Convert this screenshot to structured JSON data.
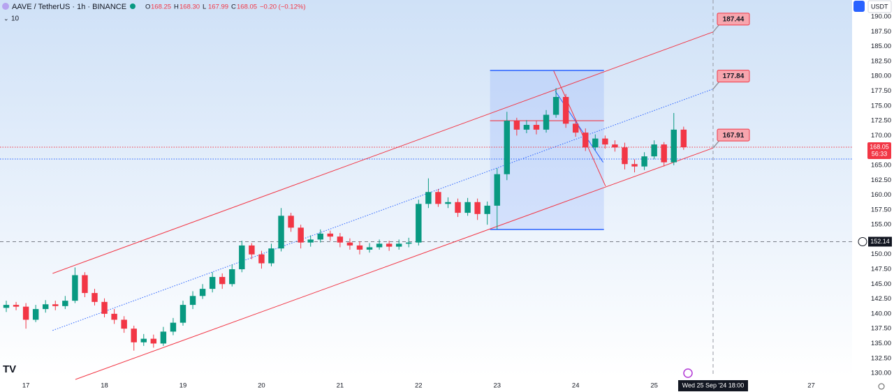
{
  "chart_data": {
    "type": "candlestick",
    "title": "AAVE / TetherUS · 1h · BINANCE",
    "legend_labels": [
      "O",
      "H",
      "L",
      "C"
    ],
    "legend_values": [
      "168.25",
      "168.30",
      "167.99",
      "168.05"
    ],
    "change_label": "−0.20 (−0.12%)",
    "indicator_label": "10",
    "currency_button": "USDT",
    "countdown": "56:33",
    "crosshair_x": 25.75,
    "crosshair_label": "Wed 25 Sep '24  18:00",
    "up_color": "#089981",
    "down_color": "#f23645",
    "xlim": [
      16.67,
      27.52
    ],
    "ylim": [
      129.42,
      192.82
    ],
    "xticks": [
      17,
      18,
      19,
      20,
      21,
      22,
      23,
      24,
      25,
      27
    ],
    "yticks": [
      {
        "value": 130,
        "label": "130.00"
      },
      {
        "value": 132.5,
        "label": "132.50"
      },
      {
        "value": 135,
        "label": "135.00"
      },
      {
        "value": 137.5,
        "label": "137.50"
      },
      {
        "value": 140,
        "label": "140.00"
      },
      {
        "value": 142.5,
        "label": "142.50"
      },
      {
        "value": 145,
        "label": "145.00"
      },
      {
        "value": 147.5,
        "label": "147.50"
      },
      {
        "value": 150,
        "label": "150.00"
      },
      {
        "value": 152.5,
        "label": "152.50"
      },
      {
        "value": 155,
        "label": "155.00"
      },
      {
        "value": 157.5,
        "label": "157.50"
      },
      {
        "value": 160,
        "label": "160.00"
      },
      {
        "value": 162.5,
        "label": "162.50"
      },
      {
        "value": 165,
        "label": "165.00"
      },
      {
        "value": 167.5,
        "label": "167.50"
      },
      {
        "value": 170,
        "label": "170.00"
      },
      {
        "value": 172.5,
        "label": "172.50"
      },
      {
        "value": 175,
        "label": "175.00"
      },
      {
        "value": 177.5,
        "label": "177.50"
      },
      {
        "value": 180,
        "label": "180.00"
      },
      {
        "value": 182.5,
        "label": "182.50"
      },
      {
        "value": 185,
        "label": "185.00"
      },
      {
        "value": 187.5,
        "label": "187.50"
      },
      {
        "value": 190,
        "label": "190.00"
      }
    ],
    "grid": false,
    "x": [
      16.75,
      16.875,
      17,
      17.125,
      17.25,
      17.375,
      17.5,
      17.625,
      17.75,
      17.875,
      18,
      18.125,
      18.25,
      18.375,
      18.5,
      18.625,
      18.75,
      18.875,
      19,
      19.125,
      19.25,
      19.375,
      19.5,
      19.625,
      19.75,
      19.875,
      20,
      20.125,
      20.25,
      20.375,
      20.5,
      20.625,
      20.75,
      20.875,
      21,
      21.125,
      21.25,
      21.375,
      21.5,
      21.625,
      21.75,
      21.875,
      22,
      22.125,
      22.25,
      22.375,
      22.5,
      22.625,
      22.75,
      22.875,
      23,
      23.125,
      23.25,
      23.375,
      23.5,
      23.625,
      23.75,
      23.875,
      24,
      24.125,
      24.25,
      24.375,
      24.5,
      24.625,
      24.75,
      24.875,
      25,
      25.125,
      25.25,
      25.375
    ],
    "open": [
      141.0,
      141.5,
      141.2,
      139.0,
      140.8,
      141.6,
      141.3,
      142.2,
      146.5,
      143.5,
      142.0,
      140.0,
      139.0,
      137.5,
      135.2,
      135.8,
      135.0,
      137.0,
      138.5,
      141.5,
      143.0,
      144.2,
      146.2,
      145.0,
      147.5,
      151.5,
      150.0,
      148.5,
      151.0,
      156.5,
      154.5,
      152.0,
      152.5,
      153.5,
      153.0,
      152.0,
      151.5,
      150.8,
      151.2,
      151.8,
      151.3,
      151.8,
      152.0,
      158.5,
      160.5,
      158.5,
      158.8,
      157.0,
      158.8,
      156.8,
      158.2,
      163.5,
      172.5,
      171.0,
      171.8,
      171.0,
      173.5,
      176.5,
      172.0,
      170.5,
      168.0,
      169.5,
      168.5,
      168.0,
      165.2,
      164.8,
      166.5,
      168.5,
      165.5,
      171.0
    ],
    "high": [
      142.2,
      142.0,
      141.8,
      141.5,
      142.3,
      142.2,
      143.0,
      147.8,
      147.0,
      144.2,
      142.6,
      140.8,
      139.6,
      138.0,
      136.6,
      136.5,
      137.8,
      139.3,
      142.2,
      143.8,
      145.0,
      147.0,
      146.8,
      148.3,
      152.3,
      151.9,
      150.6,
      151.8,
      157.8,
      157.0,
      155.0,
      153.2,
      154.2,
      154.0,
      153.6,
      152.7,
      152.2,
      151.9,
      152.5,
      152.3,
      152.5,
      152.8,
      159.2,
      162.8,
      161.0,
      159.6,
      159.4,
      159.5,
      159.4,
      158.9,
      164.5,
      174.0,
      173.0,
      172.6,
      172.5,
      174.3,
      178.0,
      177.0,
      172.8,
      171.2,
      170.2,
      170.0,
      169.2,
      168.8,
      166.0,
      167.2,
      169.2,
      168.9,
      173.8,
      171.5
    ],
    "low": [
      140.3,
      140.6,
      137.5,
      138.6,
      140.2,
      140.6,
      140.8,
      141.8,
      142.8,
      141.4,
      139.4,
      138.3,
      136.8,
      133.8,
      134.6,
      134.3,
      134.6,
      136.4,
      138.0,
      140.8,
      142.5,
      143.6,
      144.2,
      144.6,
      147.0,
      149.2,
      147.6,
      148.0,
      150.5,
      153.8,
      151.0,
      151.3,
      152.0,
      152.3,
      151.2,
      150.8,
      150.0,
      150.3,
      150.8,
      150.6,
      150.8,
      151.2,
      151.5,
      157.8,
      158.0,
      157.8,
      156.3,
      156.5,
      155.8,
      155.0,
      154.2,
      162.5,
      170.0,
      170.4,
      170.2,
      170.5,
      173.0,
      171.3,
      169.8,
      167.4,
      167.5,
      167.8,
      167.3,
      164.3,
      163.8,
      164.2,
      166.0,
      164.8,
      165.0,
      167.6
    ],
    "close": [
      141.5,
      141.2,
      139.0,
      140.8,
      141.6,
      141.3,
      142.2,
      146.5,
      143.5,
      142.0,
      140.0,
      139.0,
      137.5,
      135.2,
      135.8,
      135.0,
      137.0,
      138.5,
      141.5,
      143.0,
      144.2,
      146.2,
      145.0,
      147.5,
      151.5,
      150.0,
      148.5,
      151.0,
      156.5,
      154.5,
      152.0,
      152.5,
      153.5,
      153.0,
      152.0,
      151.5,
      150.8,
      151.2,
      151.8,
      151.3,
      151.8,
      152.0,
      158.5,
      160.5,
      158.5,
      158.8,
      157.0,
      158.8,
      156.8,
      158.2,
      163.5,
      172.5,
      171.0,
      171.8,
      171.0,
      173.5,
      176.5,
      172.0,
      170.5,
      168.0,
      169.5,
      168.5,
      168.0,
      165.2,
      164.8,
      166.5,
      168.5,
      165.5,
      171.0,
      168.05
    ],
    "lines": [
      {
        "x": [
          17.34,
          25.75
        ],
        "y": [
          146.8,
          187.44
        ],
        "color": "#f23645",
        "style": "solid",
        "end_label": true
      },
      {
        "x": [
          17.34,
          25.75
        ],
        "y": [
          137.2,
          177.84
        ],
        "color": "#2962ff",
        "style": "dotted",
        "end_label": true
      },
      {
        "x": [
          17.63,
          25.75
        ],
        "y": [
          128.95,
          167.91
        ],
        "color": "#f23645",
        "style": "solid",
        "end_label": true
      },
      {
        "x": [
          23.72,
          24.38
        ],
        "y": [
          180.9,
          161.5
        ],
        "color": "#f23645",
        "style": "solid",
        "end_label": false
      },
      {
        "x": [
          23.74,
          24.35
        ],
        "y": [
          177.5,
          165.5
        ],
        "color": "#2962ff",
        "style": "solid",
        "end_label": false
      }
    ],
    "range_box": {
      "x": [
        22.91,
        24.36
      ],
      "y": [
        154.19,
        180.96
      ],
      "poc": 172.5
    },
    "hlines": [
      {
        "y": 168.05,
        "color": "#f23645",
        "style": "dotted"
      },
      {
        "y": 166.05,
        "color": "#2962ff",
        "style": "dotted"
      },
      {
        "y": 152.14,
        "color": "#787b86",
        "style": "dashed"
      }
    ]
  }
}
